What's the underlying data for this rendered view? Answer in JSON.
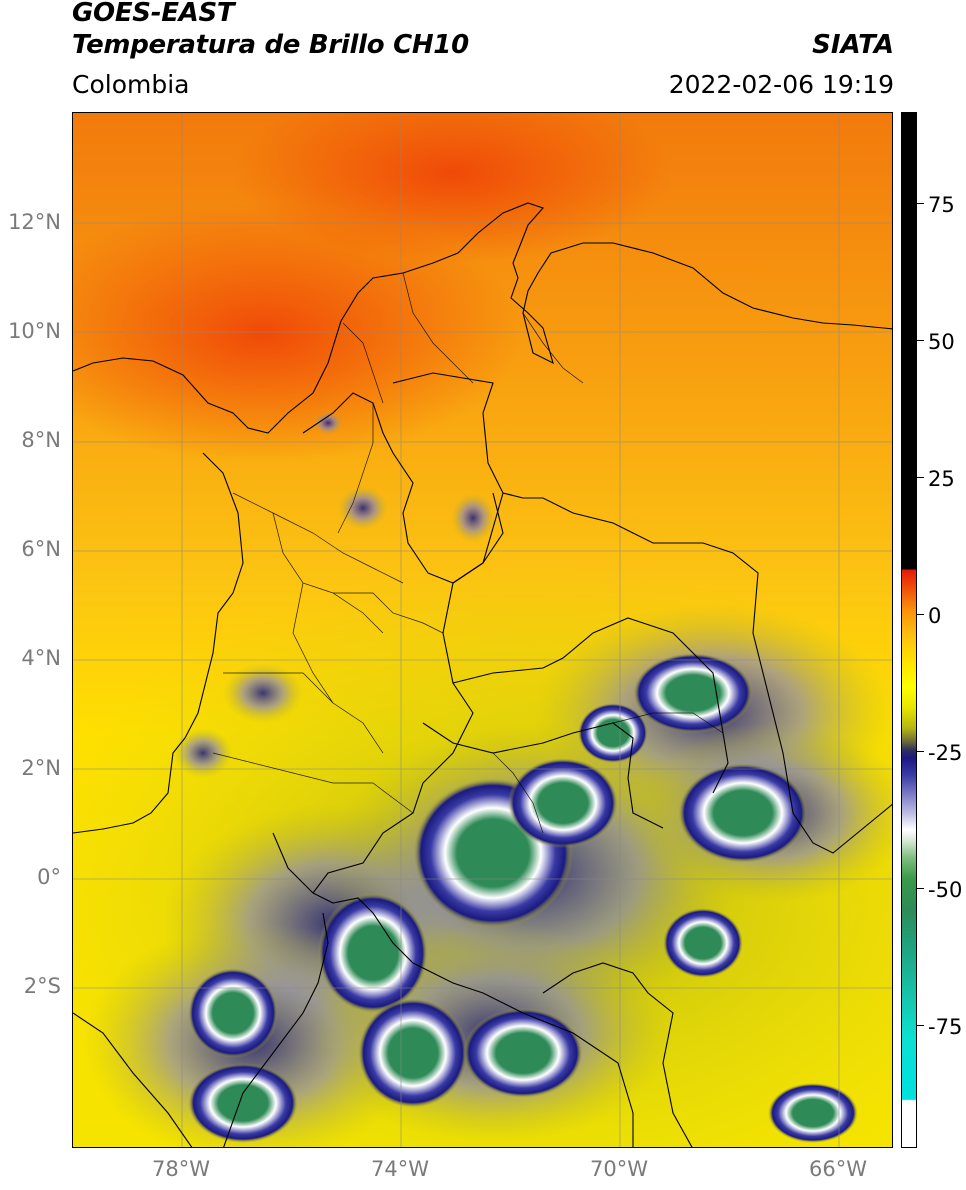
{
  "title": {
    "satellite": "GOES-EAST",
    "product": "Temperatura de Brillo CH10",
    "region": "Colombia",
    "organization": "SIATA",
    "datetime": "2022-02-06 19:19"
  },
  "map": {
    "lat_labels": [
      "12°N",
      "10°N",
      "8°N",
      "6°N",
      "4°N",
      "2°N",
      "0°",
      "2°S"
    ],
    "lon_labels": [
      "78°W",
      "74°W",
      "70°W",
      "66°W"
    ],
    "gridlines": true,
    "extent": {
      "lon": [
        -80,
        -65
      ],
      "lat": [
        -5,
        14
      ]
    }
  },
  "colorbar": {
    "labels": [
      "75",
      "50",
      "25",
      "0",
      "-25",
      "-50",
      "-75"
    ],
    "range": [
      -95,
      90
    ],
    "colors": {
      "warm": "#000000",
      "hot_red": "#e31a0a",
      "orange": "#f8900a",
      "yellow": "#ffff00",
      "olive": "#b5b515",
      "navy": "#1a1a80",
      "white": "#ffffff",
      "green": "#2e8b57",
      "teal": "#1fa584",
      "cyan": "#00e0e0"
    }
  }
}
